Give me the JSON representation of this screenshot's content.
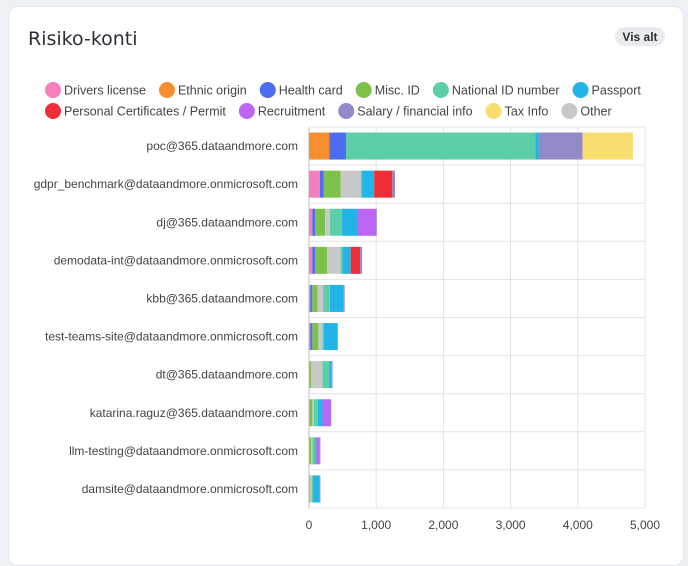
{
  "card": {
    "title": "Risiko-konti",
    "button_label": "Vis alt"
  },
  "chart_data": {
    "type": "bar",
    "orientation": "horizontal",
    "stacked": true,
    "categories": [
      "poc@365.dataandmore.com",
      "gdpr_benchmark@dataandmore.onmicrosoft.com",
      "dj@365.dataandmore.com",
      "demodata-int@dataandmore.onmicrosoft.com",
      "kbb@365.dataandmore.com",
      "test-teams-site@dataandmore.onmicrosoft.com",
      "dt@365.dataandmore.com",
      "katarina.raguz@365.dataandmore.com",
      "llm-testing@dataandmore.onmicrosoft.com",
      "damsite@dataandmore.onmicrosoft.com"
    ],
    "series": [
      {
        "name": "Drivers license",
        "color": "#f57ebc",
        "values": [
          0,
          160,
          50,
          50,
          20,
          20,
          10,
          10,
          10,
          10
        ]
      },
      {
        "name": "Ethnic origin",
        "color": "#f98e2e",
        "values": [
          300,
          0,
          0,
          0,
          0,
          0,
          0,
          0,
          0,
          0
        ]
      },
      {
        "name": "Health card",
        "color": "#4c6cf2",
        "values": [
          250,
          60,
          40,
          40,
          30,
          30,
          0,
          0,
          0,
          0
        ]
      },
      {
        "name": "Misc. ID",
        "color": "#7cc24a",
        "values": [
          0,
          250,
          150,
          180,
          80,
          90,
          20,
          40,
          20,
          10
        ]
      },
      {
        "name": "National ID number",
        "color": "#5ccfa9",
        "values": [
          2820,
          20,
          180,
          30,
          100,
          20,
          100,
          60,
          40,
          20
        ]
      },
      {
        "name": "Passport",
        "color": "#22b4e6",
        "values": [
          50,
          180,
          240,
          120,
          200,
          200,
          30,
          70,
          20,
          90
        ]
      },
      {
        "name": "Personal Certificates / Permit",
        "color": "#ef2d36",
        "values": [
          0,
          270,
          0,
          140,
          0,
          0,
          0,
          0,
          0,
          0
        ]
      },
      {
        "name": "Recruitment",
        "color": "#bc64f3",
        "values": [
          0,
          0,
          270,
          0,
          0,
          0,
          0,
          120,
          40,
          0
        ]
      },
      {
        "name": "Salary / financial info",
        "color": "#9289c9",
        "values": [
          650,
          40,
          10,
          30,
          20,
          10,
          20,
          10,
          20,
          20
        ]
      },
      {
        "name": "Tax Info",
        "color": "#f9dd6e",
        "values": [
          750,
          0,
          0,
          0,
          0,
          0,
          0,
          0,
          0,
          0
        ]
      },
      {
        "name": "Other",
        "color": "#c8c8c8",
        "values": [
          0,
          300,
          70,
          200,
          80,
          60,
          170,
          20,
          20,
          20
        ]
      }
    ],
    "stack_order": [
      "Drivers license",
      "Ethnic origin",
      "Health card",
      "Misc. ID",
      "Other",
      "National ID number",
      "Passport",
      "Personal Certificates / Permit",
      "Recruitment",
      "Salary / financial info",
      "Tax Info"
    ],
    "xlim": [
      0,
      5000
    ],
    "xticks": [
      0,
      1000,
      2000,
      3000,
      4000,
      5000
    ],
    "xtick_labels": [
      "0",
      "1,000",
      "2,000",
      "3,000",
      "4,000",
      "5,000"
    ],
    "legend_position": "top",
    "grid": true
  }
}
